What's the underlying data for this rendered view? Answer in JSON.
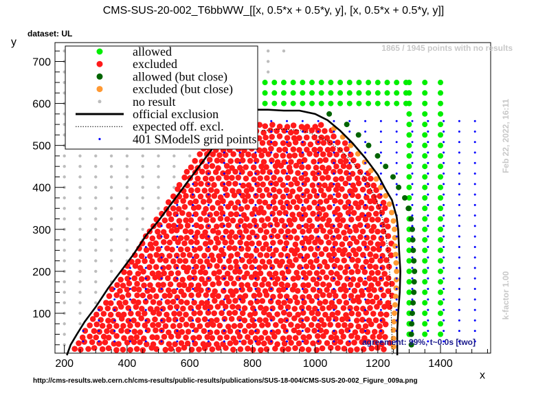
{
  "chart_data": {
    "type": "scatter",
    "title": "CMS-SUS-20-002_T6bbWW_[[x, 0.5*x + 0.5*y, y], [x, 0.5*x + 0.5*y, y]]",
    "dataset_label": "dataset: UL",
    "xlabel": "x",
    "ylabel": "y",
    "xlim": [
      170,
      1560
    ],
    "ylim": [
      5,
      745
    ],
    "xticks": [
      200,
      400,
      600,
      800,
      1000,
      1200,
      1400
    ],
    "yticks": [
      100,
      200,
      300,
      400,
      500,
      600,
      700
    ],
    "legend_position": "top-left",
    "legend": [
      {
        "label": "allowed",
        "color": "#00ee00",
        "marker": "dot"
      },
      {
        "label": "excluded",
        "color": "#ff1a1a",
        "marker": "dot"
      },
      {
        "label": "allowed (but close)",
        "color": "#006400",
        "marker": "dot"
      },
      {
        "label": "excluded (but close)",
        "color": "#ff9933",
        "marker": "dot"
      },
      {
        "label": "no result",
        "color": "#bdbdbd",
        "marker": "small-dot"
      },
      {
        "label": "official exclusion",
        "color": "#000000",
        "marker": "thick-line"
      },
      {
        "label": "expected off. excl.",
        "color": "#000000",
        "marker": "dotted-line"
      },
      {
        "label": "401 SModelS grid points",
        "color": "#0000ff",
        "marker": "tiny-dot"
      }
    ],
    "official_exclusion": [
      [
        208,
        0
      ],
      [
        220,
        25
      ],
      [
        240,
        50
      ],
      [
        265,
        80
      ],
      [
        300,
        115
      ],
      [
        340,
        160
      ],
      [
        380,
        200
      ],
      [
        420,
        240
      ],
      [
        460,
        285
      ],
      [
        500,
        320
      ],
      [
        540,
        360
      ],
      [
        580,
        400
      ],
      [
        620,
        440
      ],
      [
        660,
        480
      ],
      [
        700,
        520
      ],
      [
        740,
        555
      ],
      [
        770,
        575
      ],
      [
        800,
        585
      ],
      [
        850,
        585
      ],
      [
        900,
        583
      ],
      [
        950,
        583
      ],
      [
        1000,
        575
      ],
      [
        1040,
        560
      ],
      [
        1080,
        535
      ],
      [
        1120,
        505
      ],
      [
        1160,
        470
      ],
      [
        1200,
        430
      ],
      [
        1225,
        395
      ],
      [
        1245,
        370
      ],
      [
        1260,
        330
      ],
      [
        1265,
        300
      ],
      [
        1268,
        250
      ],
      [
        1272,
        200
      ],
      [
        1270,
        150
      ],
      [
        1265,
        100
      ],
      [
        1262,
        60
      ],
      [
        1262,
        0
      ]
    ],
    "expected_exclusion": [
      [
        830,
        535
      ],
      [
        870,
        538
      ],
      [
        920,
        538
      ],
      [
        960,
        535
      ],
      [
        1000,
        525
      ],
      [
        1040,
        510
      ],
      [
        1080,
        490
      ],
      [
        1120,
        460
      ],
      [
        1160,
        420
      ],
      [
        1190,
        380
      ],
      [
        1210,
        340
      ],
      [
        1225,
        290
      ],
      [
        1235,
        230
      ],
      [
        1240,
        170
      ],
      [
        1242,
        110
      ],
      [
        1245,
        50
      ],
      [
        1246,
        0
      ]
    ],
    "notes": {
      "no_results": "1865 / 1945 points with no results",
      "date": "Feb 22, 2022, 16:11",
      "kfactor": "k-factor 1.00",
      "agreement": "agreement: 99%, t~0.0s [two]"
    },
    "source_url": "http://cms-results.web.cern.ch/cms-results/public-results/publications/SUS-18-004/CMS-SUS-20-002_Figure_009a.png"
  }
}
